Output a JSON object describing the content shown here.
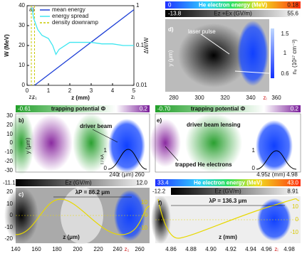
{
  "chart_data": {
    "type": "line",
    "panel_label": "a)",
    "x_label": "z (mm)",
    "y_label": "W (MeV)",
    "y2_label": "ΔW/W",
    "xlim": [
      0,
      5
    ],
    "xticks": [
      0,
      1,
      2,
      3,
      4,
      5
    ],
    "ylim": [
      0,
      40
    ],
    "yticks": [
      0,
      10,
      20,
      30,
      40
    ],
    "y2lim": [
      0.01,
      1
    ],
    "y2ticks": [
      0.01,
      0.1,
      1
    ],
    "y2_log": true,
    "series": [
      {
        "name": "mean energy",
        "color": "#1d3fd6",
        "x": [
          0.35,
          5
        ],
        "values": [
          0,
          38
        ]
      },
      {
        "name": "energy spread",
        "color": "#3fe6f0",
        "axis": "y2",
        "x": [
          0.2,
          0.25,
          0.3,
          0.4,
          0.5,
          0.7,
          1.0,
          1.2,
          1.35,
          1.5,
          2,
          2.5,
          3,
          3.5,
          4,
          4.5,
          5
        ],
        "values": [
          0.9,
          0.8,
          0.5,
          0.35,
          0.25,
          0.18,
          0.15,
          0.1,
          0.06,
          0.08,
          0.12,
          0.12,
          0.12,
          0.11,
          0.11,
          0.1,
          0.1
        ]
      }
    ],
    "downramp": {
      "name": "density downramp",
      "color": "#c8c800",
      "x": [
        0.2,
        0.35
      ]
    },
    "x_markers": [
      {
        "value": 0.2,
        "label": "z₂"
      },
      {
        "value": 0.35,
        "label": "z₁"
      },
      {
        "value": 4.95,
        "label": "zᵢ"
      }
    ]
  },
  "panel_d": {
    "label": "d)",
    "colorbar_1": {
      "min": "0",
      "label": "He electron energy (MeV)",
      "max": "0.18"
    },
    "colorbar_2": {
      "min": "-13.8",
      "label": "Ez +Ex (GV/m)",
      "max": "55.6"
    },
    "annotation": "laser pulse",
    "y_label": "y (μm)",
    "density_label": "nₑ (10¹⁷ cm⁻³)",
    "density_ticks": [
      "1.5",
      "1",
      "0.6"
    ],
    "x_ticks": [
      "280",
      "300",
      "320",
      "340",
      "360"
    ],
    "x_marker": "zᵢ"
  },
  "panel_b": {
    "label": "b)",
    "colorbar": {
      "min": "-0.61",
      "label": "trapping potential Φ",
      "max": "0.2"
    },
    "annotation": "driver beam",
    "y_label": "y (μm)",
    "y_ticks": [
      "30",
      "20",
      "10",
      "0",
      "-10",
      "-20",
      "-30"
    ],
    "inset": {
      "y_label": "I / kA",
      "y_ticks": [
        "1",
        "0"
      ],
      "x_ticks": [
        "240",
        "260"
      ],
      "x_label": "z (μm)"
    }
  },
  "panel_e": {
    "label": "e)",
    "colorbar": {
      "min": "-0.70",
      "label": "trapping potential Φ",
      "max": "0.2"
    },
    "annotations": [
      "driver beam lensing",
      "trapped He electrons"
    ],
    "inset": {
      "y_ticks": [
        "1",
        "0"
      ],
      "x_ticks": [
        "4.95",
        "4.98"
      ],
      "x_label": "z (mm)"
    }
  },
  "panel_c": {
    "label": "c)",
    "colorbar": {
      "min": "-11.1",
      "label": "Ez (GV/m)",
      "max": "12.0"
    },
    "annotation": "λP = 86.2 μm",
    "x_label": "z (μm)",
    "y_ticks": [
      "20",
      "10",
      "0",
      "-10",
      "-20"
    ],
    "right_ticks": [
      "10",
      "0",
      "-10"
    ],
    "x_ticks": [
      "140",
      "160",
      "180",
      "200",
      "220",
      "240",
      "260"
    ],
    "x_marker": "z₁"
  },
  "panel_f": {
    "label": "f)",
    "colorbar_1": {
      "min": "33.4",
      "label": "He electron energy (MeV)",
      "max": "43.0"
    },
    "colorbar_2": {
      "min": "-12.2",
      "label": "Ez (GV/m)",
      "max": "8.91"
    },
    "annotation": "λP = 136.3 μm",
    "x_label": "z (mm)",
    "right_ticks": [
      "10",
      "0",
      "-10"
    ],
    "x_ticks": [
      "4.86",
      "4.88",
      "4.90",
      "4.92",
      "4.94",
      "4.96",
      "4.98"
    ],
    "x_marker": "zᵢ"
  }
}
